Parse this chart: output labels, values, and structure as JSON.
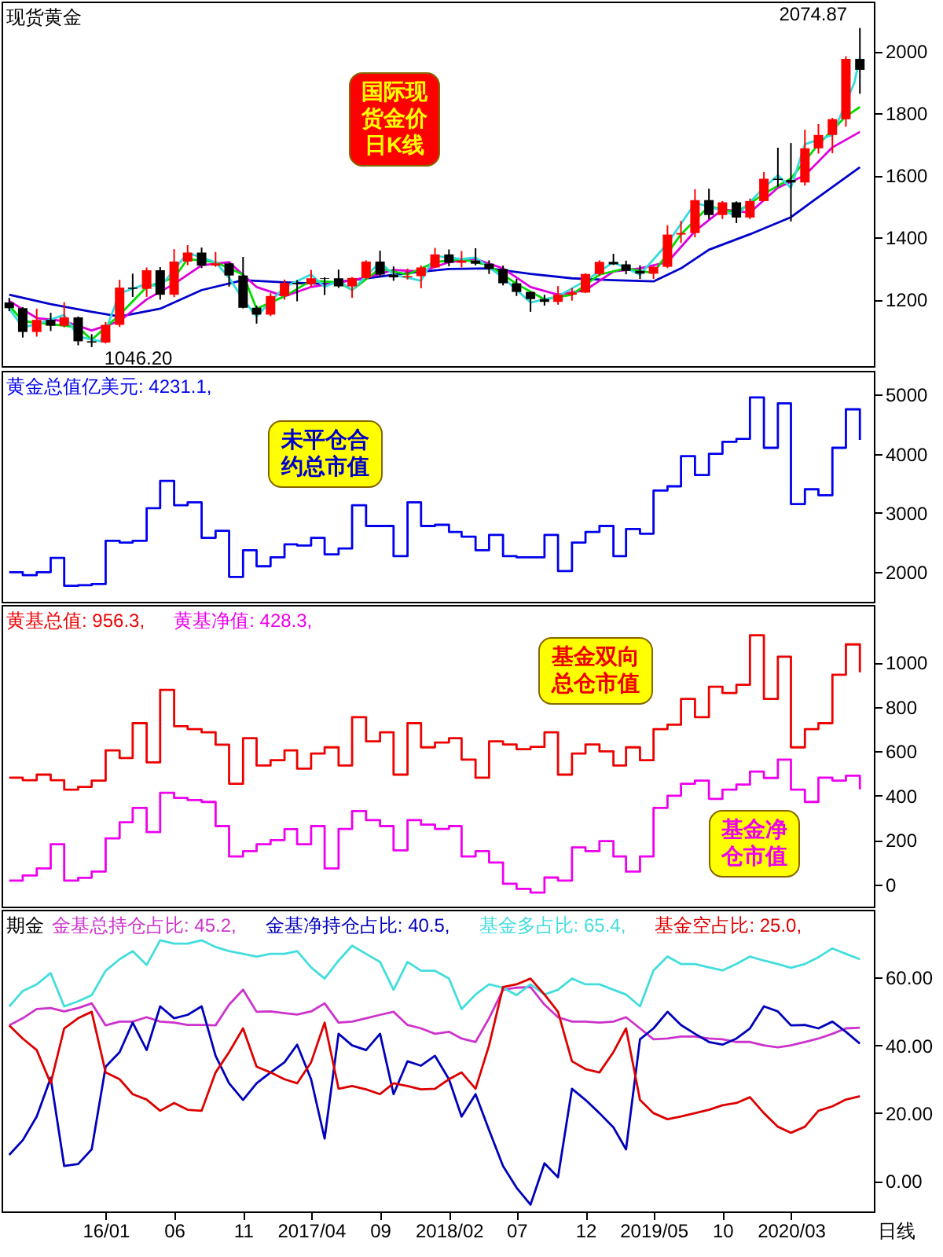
{
  "chart_data": [
    {
      "type": "candlestick",
      "title": "现货黄金",
      "tick_labels": "y",
      "xlim": [
        "2015-05-15",
        "2020-09-01"
      ],
      "ylim": [
        985,
        2160
      ],
      "yticks": [
        1200,
        1400,
        1600,
        1800,
        2000
      ],
      "x": [
        "2015-06",
        "2015-07",
        "2015-08",
        "2015-09",
        "2015-10",
        "2015-11",
        "2015-12",
        "2016-01",
        "2016-02",
        "2016-03",
        "2016-04",
        "2016-05",
        "2016-06",
        "2016-07",
        "2016-08",
        "2016-09",
        "2016-10",
        "2016-11",
        "2016-12",
        "2017-01",
        "2017-02",
        "2017-03",
        "2017-04",
        "2017-05",
        "2017-06",
        "2017-07",
        "2017-08",
        "2017-09",
        "2017-10",
        "2017-11",
        "2017-12",
        "2018-01",
        "2018-02",
        "2018-03",
        "2018-04",
        "2018-05",
        "2018-06",
        "2018-07",
        "2018-08",
        "2018-09",
        "2018-10",
        "2018-11",
        "2018-12",
        "2019-01",
        "2019-02",
        "2019-03",
        "2019-04",
        "2019-05",
        "2019-06",
        "2019-07",
        "2019-08",
        "2019-09",
        "2019-10",
        "2019-11",
        "2019-12",
        "2020-01",
        "2020-02",
        "2020-03",
        "2020-04",
        "2020-05",
        "2020-06",
        "2020-07",
        "2020-08"
      ],
      "ohlc": [
        [
          1190,
          1205,
          1162,
          1172
        ],
        [
          1172,
          1175,
          1077,
          1095
        ],
        [
          1095,
          1170,
          1080,
          1134
        ],
        [
          1134,
          1157,
          1098,
          1115
        ],
        [
          1115,
          1191,
          1110,
          1142
        ],
        [
          1142,
          1145,
          1052,
          1065
        ],
        [
          1065,
          1088,
          1046.2,
          1061
        ],
        [
          1061,
          1127,
          1058,
          1118
        ],
        [
          1118,
          1263,
          1111,
          1238
        ],
        [
          1238,
          1283,
          1208,
          1234
        ],
        [
          1234,
          1303,
          1208,
          1294
        ],
        [
          1294,
          1304,
          1199,
          1215
        ],
        [
          1215,
          1362,
          1207,
          1322
        ],
        [
          1322,
          1375,
          1310,
          1351
        ],
        [
          1351,
          1367,
          1301,
          1309
        ],
        [
          1309,
          1353,
          1305,
          1316
        ],
        [
          1316,
          1318,
          1241,
          1277
        ],
        [
          1277,
          1337,
          1171,
          1173
        ],
        [
          1173,
          1180,
          1122,
          1151
        ],
        [
          1151,
          1220,
          1146,
          1211
        ],
        [
          1211,
          1264,
          1199,
          1253
        ],
        [
          1253,
          1262,
          1194,
          1249
        ],
        [
          1249,
          1295,
          1241,
          1268
        ],
        [
          1268,
          1271,
          1214,
          1266
        ],
        [
          1268,
          1296,
          1237,
          1242
        ],
        [
          1242,
          1272,
          1205,
          1269
        ],
        [
          1269,
          1326,
          1265,
          1322
        ],
        [
          1322,
          1357,
          1271,
          1280
        ],
        [
          1280,
          1306,
          1260,
          1271
        ],
        [
          1271,
          1299,
          1264,
          1275
        ],
        [
          1275,
          1309,
          1236,
          1303
        ],
        [
          1303,
          1366,
          1302,
          1345
        ],
        [
          1345,
          1361,
          1307,
          1318
        ],
        [
          1318,
          1356,
          1303,
          1325
        ],
        [
          1325,
          1365,
          1310,
          1315
        ],
        [
          1315,
          1326,
          1282,
          1298
        ],
        [
          1298,
          1309,
          1245,
          1252
        ],
        [
          1252,
          1266,
          1211,
          1224
        ],
        [
          1224,
          1225,
          1160,
          1201
        ],
        [
          1201,
          1215,
          1180,
          1192
        ],
        [
          1192,
          1243,
          1183,
          1215
        ],
        [
          1215,
          1237,
          1196,
          1222
        ],
        [
          1222,
          1284,
          1221,
          1282
        ],
        [
          1282,
          1326,
          1276,
          1321
        ],
        [
          1321,
          1347,
          1311,
          1313
        ],
        [
          1313,
          1325,
          1281,
          1292
        ],
        [
          1292,
          1310,
          1266,
          1283
        ],
        [
          1283,
          1306,
          1266,
          1305
        ],
        [
          1305,
          1439,
          1301,
          1409
        ],
        [
          1409,
          1453,
          1382,
          1414
        ],
        [
          1414,
          1555,
          1400,
          1520
        ],
        [
          1520,
          1557,
          1459,
          1472
        ],
        [
          1472,
          1517,
          1459,
          1513
        ],
        [
          1513,
          1516,
          1446,
          1464
        ],
        [
          1464,
          1525,
          1459,
          1517
        ],
        [
          1517,
          1611,
          1517,
          1589
        ],
        [
          1589,
          1689,
          1563,
          1585
        ],
        [
          1585,
          1704,
          1451,
          1577
        ],
        [
          1577,
          1747,
          1567,
          1687
        ],
        [
          1687,
          1765,
          1670,
          1730
        ],
        [
          1730,
          1785,
          1671,
          1781
        ],
        [
          1781,
          1984,
          1757,
          1975
        ],
        [
          1975,
          2074.87,
          1863,
          1940
        ]
      ],
      "colors": [
        "#000000",
        "#000000",
        "#ff0000",
        "#000000",
        "#ff0000",
        "#000000",
        "#000000",
        "#ff0000",
        "#ff0000",
        "#000000",
        "#ff0000",
        "#000000",
        "#ff0000",
        "#ff0000",
        "#000000",
        "#ff0000",
        "#000000",
        "#000000",
        "#000000",
        "#ff0000",
        "#ff0000",
        "#000000",
        "#ff0000",
        "#000000",
        "#000000",
        "#ff0000",
        "#ff0000",
        "#000000",
        "#000000",
        "#ff0000",
        "#ff0000",
        "#ff0000",
        "#000000",
        "#ff0000",
        "#000000",
        "#000000",
        "#000000",
        "#000000",
        "#000000",
        "#000000",
        "#ff0000",
        "#ff0000",
        "#ff0000",
        "#ff0000",
        "#000000",
        "#000000",
        "#000000",
        "#ff0000",
        "#ff0000",
        "#ff0000",
        "#ff0000",
        "#000000",
        "#ff0000",
        "#000000",
        "#ff0000",
        "#ff0000",
        "#000000",
        "#000000",
        "#ff0000",
        "#ff0000",
        "#ff0000",
        "#ff0000",
        "#000000"
      ],
      "series": [
        {
          "type": "line",
          "color": "#0000cc",
          "x": [
            "2015-06",
            "2015-09",
            "2015-12",
            "2016-02",
            "2016-05",
            "2016-08",
            "2016-11",
            "2017-02",
            "2017-05",
            "2017-08",
            "2017-11",
            "2018-02",
            "2018-05",
            "2018-08",
            "2018-11",
            "2019-02",
            "2019-05",
            "2019-07",
            "2019-09",
            "2019-12",
            "2020-03",
            "2020-05",
            "2020-08"
          ],
          "values": [
            1215,
            1185,
            1160,
            1145,
            1170,
            1230,
            1262,
            1255,
            1250,
            1268,
            1285,
            1298,
            1300,
            1282,
            1268,
            1262,
            1258,
            1300,
            1360,
            1410,
            1465,
            1530,
            1626
          ]
        },
        {
          "type": "line",
          "color": "#dd00dd",
          "x": [
            "2015-06",
            "2015-08",
            "2015-10",
            "2015-12",
            "2016-02",
            "2016-04",
            "2016-06",
            "2016-08",
            "2016-10",
            "2016-12",
            "2017-02",
            "2017-04",
            "2017-06",
            "2017-08",
            "2017-10",
            "2017-12",
            "2018-02",
            "2018-04",
            "2018-06",
            "2018-08",
            "2018-10",
            "2018-12",
            "2019-02",
            "2019-04",
            "2019-06",
            "2019-08",
            "2019-10",
            "2019-12",
            "2020-02",
            "2020-04",
            "2020-06",
            "2020-08"
          ],
          "values": [
            1195,
            1140,
            1130,
            1100,
            1130,
            1200,
            1250,
            1310,
            1320,
            1240,
            1210,
            1240,
            1255,
            1270,
            1295,
            1290,
            1320,
            1330,
            1300,
            1240,
            1215,
            1230,
            1290,
            1300,
            1320,
            1420,
            1490,
            1480,
            1560,
            1600,
            1690,
            1740
          ]
        },
        {
          "type": "line",
          "color": "#00dd00",
          "x": [
            "2015-06",
            "2015-07",
            "2015-09",
            "2015-11",
            "2015-12",
            "2016-02",
            "2016-04",
            "2016-06",
            "2016-07",
            "2016-09",
            "2016-11",
            "2016-12",
            "2017-02",
            "2017-04",
            "2017-06",
            "2017-07",
            "2017-09",
            "2017-11",
            "2018-01",
            "2018-03",
            "2018-05",
            "2018-07",
            "2018-09",
            "2018-11",
            "2019-01",
            "2019-03",
            "2019-05",
            "2019-07",
            "2019-09",
            "2019-11",
            "2020-01",
            "2020-03",
            "2020-05",
            "2020-07",
            "2020-08"
          ],
          "values": [
            1180,
            1130,
            1120,
            1110,
            1070,
            1150,
            1240,
            1270,
            1330,
            1320,
            1280,
            1170,
            1210,
            1260,
            1255,
            1230,
            1300,
            1280,
            1320,
            1330,
            1310,
            1250,
            1200,
            1215,
            1280,
            1300,
            1285,
            1410,
            1500,
            1480,
            1540,
            1590,
            1700,
            1790,
            1820
          ]
        },
        {
          "type": "line",
          "color": "#33dddd",
          "x": [
            "2015-06",
            "2015-07",
            "2015-08",
            "2015-10",
            "2015-11",
            "2015-12-20",
            "2016-01",
            "2016-02",
            "2016-04",
            "2016-05",
            "2016-07",
            "2016-09",
            "2016-10",
            "2016-11",
            "2016-12",
            "2017-02",
            "2017-04",
            "2017-05",
            "2017-06",
            "2017-07",
            "2017-09",
            "2017-10",
            "2017-12",
            "2018-01",
            "2018-03",
            "2018-04",
            "2018-06",
            "2018-08",
            "2018-10",
            "2018-12",
            "2019-02",
            "2019-04",
            "2019-06",
            "2019-08",
            "2019-09",
            "2019-11",
            "2020-01",
            "2020-02",
            "2020-03",
            "2020-04",
            "2020-06",
            "2020-07-20",
            "2020-08"
          ],
          "values": [
            1170,
            1110,
            1120,
            1150,
            1080,
            1065,
            1100,
            1220,
            1250,
            1240,
            1350,
            1320,
            1270,
            1200,
            1145,
            1240,
            1280,
            1240,
            1260,
            1230,
            1320,
            1280,
            1260,
            1340,
            1330,
            1335,
            1270,
            1190,
            1210,
            1260,
            1320,
            1280,
            1380,
            1510,
            1500,
            1470,
            1560,
            1600,
            1560,
            1700,
            1730,
            1900,
            1980
          ]
        }
      ],
      "annotations": [
        "国际现货金价日K线",
        {
          "text": "1046.20",
          "x": "2015-12",
          "y": 1046.2
        },
        {
          "text": "2074.87",
          "x": "2020-08",
          "y": 2074.87
        }
      ]
    },
    {
      "type": "step",
      "tick_labels": "y",
      "xlim": [
        "2015-05-15",
        "2020-09-01"
      ],
      "ylim": [
        1500,
        5400
      ],
      "yticks": [
        2000,
        3000,
        4000,
        5000
      ],
      "x": [
        "2015-06",
        "2015-07",
        "2015-08",
        "2015-09",
        "2015-10",
        "2015-11",
        "2015-12",
        "2016-01",
        "2016-02",
        "2016-03",
        "2016-04",
        "2016-05",
        "2016-06",
        "2016-07",
        "2016-08",
        "2016-09",
        "2016-10",
        "2016-11",
        "2016-12",
        "2017-01",
        "2017-02",
        "2017-03",
        "2017-04",
        "2017-05",
        "2017-06",
        "2017-07",
        "2017-08",
        "2017-09",
        "2017-10",
        "2017-11",
        "2017-12",
        "2018-01",
        "2018-02",
        "2018-03",
        "2018-04",
        "2018-05",
        "2018-06",
        "2018-07",
        "2018-08",
        "2018-09",
        "2018-10",
        "2018-11",
        "2018-12",
        "2019-01",
        "2019-02",
        "2019-03",
        "2019-04",
        "2019-05",
        "2019-06",
        "2019-07",
        "2019-08",
        "2019-09",
        "2019-10",
        "2019-11",
        "2019-12",
        "2020-01",
        "2020-02",
        "2020-03",
        "2020-04",
        "2020-05",
        "2020-06",
        "2020-07",
        "2020-08"
      ],
      "series": [
        {
          "name": "黄金总值亿美元: 4231.1,",
          "color": "#0000ee",
          "values": [
            2000,
            1950,
            2000,
            2240,
            1770,
            1780,
            1800,
            2530,
            2500,
            2530,
            3080,
            3540,
            3130,
            3180,
            2580,
            2700,
            1920,
            2370,
            2100,
            2250,
            2470,
            2450,
            2580,
            2300,
            2400,
            3130,
            2780,
            2780,
            2270,
            3180,
            2780,
            2800,
            2680,
            2600,
            2370,
            2630,
            2270,
            2250,
            2250,
            2630,
            2020,
            2500,
            2680,
            2780,
            2270,
            2730,
            2650,
            3380,
            3450,
            3960,
            3640,
            4000,
            4200,
            4250,
            4950,
            4100,
            4850,
            3150,
            3400,
            3300,
            4100,
            4750,
            4231.1
          ]
        }
      ],
      "annotations": [
        "未平仓合约总市值"
      ]
    },
    {
      "type": "step",
      "tick_labels": "y",
      "xlim": [
        "2015-05-15",
        "2020-09-01"
      ],
      "ylim": [
        -100,
        1260
      ],
      "yticks": [
        0,
        200,
        400,
        600,
        800,
        1000
      ],
      "x": [
        "2015-06",
        "2015-07",
        "2015-08",
        "2015-09",
        "2015-10",
        "2015-11",
        "2015-12",
        "2016-01",
        "2016-02",
        "2016-03",
        "2016-04",
        "2016-05",
        "2016-06",
        "2016-07",
        "2016-08",
        "2016-09",
        "2016-10",
        "2016-11",
        "2016-12",
        "2017-01",
        "2017-02",
        "2017-03",
        "2017-04",
        "2017-05",
        "2017-06",
        "2017-07",
        "2017-08",
        "2017-09",
        "2017-10",
        "2017-11",
        "2017-12",
        "2018-01",
        "2018-02",
        "2018-03",
        "2018-04",
        "2018-05",
        "2018-06",
        "2018-07",
        "2018-08",
        "2018-09",
        "2018-10",
        "2018-11",
        "2018-12",
        "2019-01",
        "2019-02",
        "2019-03",
        "2019-04",
        "2019-05",
        "2019-06",
        "2019-07",
        "2019-08",
        "2019-09",
        "2019-10",
        "2019-11",
        "2019-12",
        "2020-01",
        "2020-02",
        "2020-03",
        "2020-04",
        "2020-05",
        "2020-06",
        "2020-07",
        "2020-08"
      ],
      "series": [
        {
          "name": "黄基总值: 956.3,",
          "color": "#ee0000",
          "values": [
            481,
            470,
            495,
            470,
            427,
            440,
            468,
            604,
            570,
            727,
            550,
            877,
            713,
            700,
            686,
            630,
            454,
            659,
            536,
            560,
            604,
            522,
            590,
            618,
            536,
            754,
            645,
            686,
            495,
            727,
            618,
            640,
            659,
            563,
            481,
            645,
            631,
            610,
            620,
            686,
            495,
            590,
            631,
            600,
            536,
            618,
            560,
            700,
            720,
            836,
            754,
            891,
            863,
            900,
            1123,
            836,
            1027,
            618,
            700,
            727,
            945,
            1082,
            956.3
          ]
        },
        {
          "name": "黄基净值: 428.3,",
          "color": "#ee00ee",
          "values": [
            17,
            40,
            72,
            181,
            17,
            30,
            58,
            208,
            280,
            345,
            236,
            413,
            390,
            380,
            372,
            263,
            126,
            150,
            181,
            200,
            249,
            181,
            263,
            72,
            250,
            331,
            290,
            263,
            154,
            290,
            270,
            250,
            263,
            126,
            150,
            99,
            3,
            -20,
            -37,
            31,
            17,
            167,
            150,
            195,
            126,
            58,
            126,
            345,
            400,
            454,
            468,
            386,
            427,
            450,
            509,
            480,
            563,
            427,
            372,
            481,
            468,
            490,
            428.3
          ]
        }
      ],
      "annotations": [
        "基金双向总仓市值",
        "基金净仓市值"
      ]
    },
    {
      "type": "line",
      "title": "期金",
      "xlabel": "日线",
      "xlim": [
        "2015-05-15",
        "2020-09-01"
      ],
      "ylim": [
        -9,
        80
      ],
      "yticks": [
        {
          "value": 0,
          "label": "0.00"
        },
        {
          "value": 20,
          "label": "20.00"
        },
        {
          "value": 40,
          "label": "40.00"
        },
        {
          "value": 60,
          "label": "60.00"
        }
      ],
      "xticks": [
        {
          "value": "2016-01",
          "label": "16/01"
        },
        {
          "value": "2016-06",
          "label": "06"
        },
        {
          "value": "2016-11",
          "label": "11"
        },
        {
          "value": "2017-04",
          "label": "2017/04"
        },
        {
          "value": "2017-09",
          "label": "09"
        },
        {
          "value": "2018-02",
          "label": "2018/02"
        },
        {
          "value": "2018-07",
          "label": "07"
        },
        {
          "value": "2018-12",
          "label": "12"
        },
        {
          "value": "2019-05",
          "label": "2019/05"
        },
        {
          "value": "2019-10",
          "label": "10"
        },
        {
          "value": "2020-03",
          "label": "2020/03"
        }
      ],
      "x": [
        "2015-06",
        "2015-07",
        "2015-08",
        "2015-09",
        "2015-10",
        "2015-11",
        "2015-12",
        "2016-01",
        "2016-02",
        "2016-03",
        "2016-04",
        "2016-05",
        "2016-06",
        "2016-07",
        "2016-08",
        "2016-09",
        "2016-10",
        "2016-11",
        "2016-12",
        "2017-01",
        "2017-02",
        "2017-03",
        "2017-04",
        "2017-05",
        "2017-06",
        "2017-07",
        "2017-08",
        "2017-09",
        "2017-10",
        "2017-11",
        "2017-12",
        "2018-01",
        "2018-02",
        "2018-03",
        "2018-04",
        "2018-05",
        "2018-06",
        "2018-07",
        "2018-08",
        "2018-09",
        "2018-10",
        "2018-11",
        "2018-12",
        "2019-01",
        "2019-02",
        "2019-03",
        "2019-04",
        "2019-05",
        "2019-06",
        "2019-07",
        "2019-08",
        "2019-09",
        "2019-10",
        "2019-11",
        "2019-12",
        "2020-01",
        "2020-02",
        "2020-03",
        "2020-04",
        "2020-05",
        "2020-06",
        "2020-07",
        "2020-08"
      ],
      "series": [
        {
          "name": "金基总持仓占比: 45.2,",
          "color": "#cc33cc",
          "values": [
            45.9,
            48,
            50.7,
            51,
            50,
            51,
            52.4,
            45.9,
            47,
            47,
            48.3,
            47,
            46.7,
            46,
            46,
            45.9,
            52,
            56.4,
            49.9,
            50,
            49.5,
            49.1,
            50,
            52.4,
            46.7,
            47,
            48,
            49,
            49.9,
            46,
            45,
            43.4,
            44,
            42,
            41,
            48,
            56.4,
            57,
            57.2,
            52,
            48.3,
            47,
            47,
            46.7,
            47,
            48.3,
            45,
            41.8,
            42,
            42.6,
            42.6,
            42,
            41.8,
            41,
            41,
            40,
            39.4,
            40,
            41,
            42,
            43.4,
            45,
            45.2
          ]
        },
        {
          "name": "金基净持仓占比: 40.5,",
          "color": "#0000bb",
          "values": [
            7.7,
            12,
            19,
            30.4,
            4.4,
            5,
            9.3,
            33.7,
            38,
            46.7,
            38.6,
            51.5,
            48,
            49,
            51.5,
            36.9,
            28.8,
            23.9,
            28.8,
            32,
            35,
            40.2,
            30,
            12.5,
            43.4,
            40,
            38.6,
            43.4,
            25.6,
            35.3,
            34,
            36.9,
            30,
            19,
            25.6,
            15,
            4.4,
            -2,
            -7,
            5.2,
            1.1,
            27.2,
            23.9,
            20,
            15.8,
            9.3,
            41.8,
            45,
            49.9,
            46,
            43.4,
            41,
            40.2,
            42,
            45,
            51.5,
            50,
            45.9,
            46,
            45,
            47,
            44,
            40.5
          ]
        },
        {
          "name": "基金多占比: 65.4,",
          "color": "#44dddd",
          "values": [
            51.5,
            56,
            58,
            61.3,
            51.5,
            53,
            54.8,
            62,
            65.4,
            67.8,
            63.7,
            71,
            70,
            70,
            71,
            69,
            67.8,
            67,
            66.2,
            67,
            67,
            67.8,
            63,
            59.7,
            65,
            69.4,
            67,
            64.6,
            56.4,
            64.6,
            62,
            62,
            59.7,
            50.7,
            55,
            58,
            57,
            54.8,
            58,
            55,
            56.4,
            59.7,
            58,
            58,
            56.4,
            55,
            51.5,
            62.1,
            66.2,
            64,
            64,
            63,
            62.1,
            64,
            66.2,
            65,
            64,
            62.9,
            64,
            66,
            68.6,
            67,
            65.4
          ]
        },
        {
          "name": "基金空占比: 25.0,",
          "color": "#dd0000",
          "values": [
            45.9,
            42,
            38.6,
            28.8,
            45,
            48,
            49.9,
            32,
            30,
            25.6,
            24,
            20.7,
            23,
            21,
            20.7,
            32,
            38,
            45,
            33.7,
            32,
            30,
            28.8,
            35,
            46.7,
            27.2,
            28,
            27,
            25.6,
            28.8,
            28,
            27,
            27.2,
            30,
            32,
            27.2,
            40,
            57.2,
            58,
            59.7,
            55,
            49.9,
            35.3,
            33,
            32,
            38,
            45,
            23.9,
            20,
            18.2,
            19,
            20,
            21,
            22.3,
            23,
            24.7,
            20,
            16,
            14.2,
            16,
            20.7,
            22,
            24,
            25
          ]
        }
      ]
    }
  ]
}
